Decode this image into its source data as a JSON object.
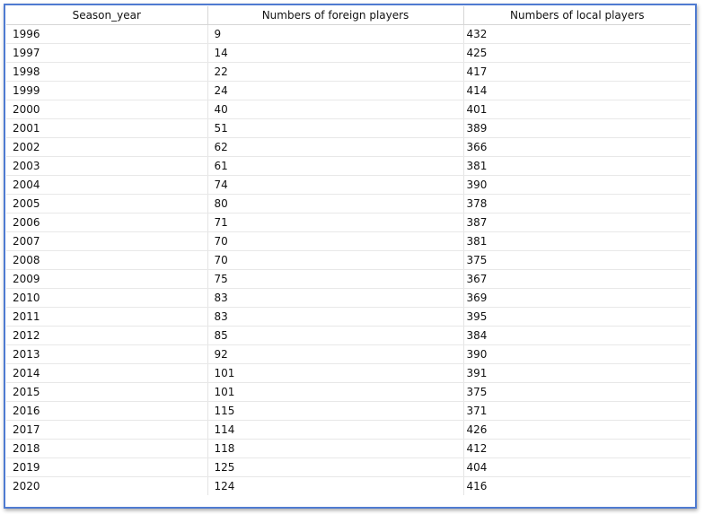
{
  "table": {
    "columns": [
      "Season_year",
      "Numbers of foreign players",
      "Numbers of local players"
    ],
    "rows": [
      [
        "1996",
        "9",
        "432"
      ],
      [
        "1997",
        "14",
        "425"
      ],
      [
        "1998",
        "22",
        "417"
      ],
      [
        "1999",
        "24",
        "414"
      ],
      [
        "2000",
        "40",
        "401"
      ],
      [
        "2001",
        "51",
        "389"
      ],
      [
        "2002",
        "62",
        "366"
      ],
      [
        "2003",
        "61",
        "381"
      ],
      [
        "2004",
        "74",
        "390"
      ],
      [
        "2005",
        "80",
        "378"
      ],
      [
        "2006",
        "71",
        "387"
      ],
      [
        "2007",
        "70",
        "381"
      ],
      [
        "2008",
        "70",
        "375"
      ],
      [
        "2009",
        "75",
        "367"
      ],
      [
        "2010",
        "83",
        "369"
      ],
      [
        "2011",
        "83",
        "395"
      ],
      [
        "2012",
        "85",
        "384"
      ],
      [
        "2013",
        "92",
        "390"
      ],
      [
        "2014",
        "101",
        "391"
      ],
      [
        "2015",
        "101",
        "375"
      ],
      [
        "2016",
        "115",
        "371"
      ],
      [
        "2017",
        "114",
        "426"
      ],
      [
        "2018",
        "118",
        "412"
      ],
      [
        "2019",
        "125",
        "404"
      ],
      [
        "2020",
        "124",
        "416"
      ]
    ]
  },
  "colors": {
    "frame_border": "#4f7bd1",
    "grid_line": "#d6d6d6"
  }
}
